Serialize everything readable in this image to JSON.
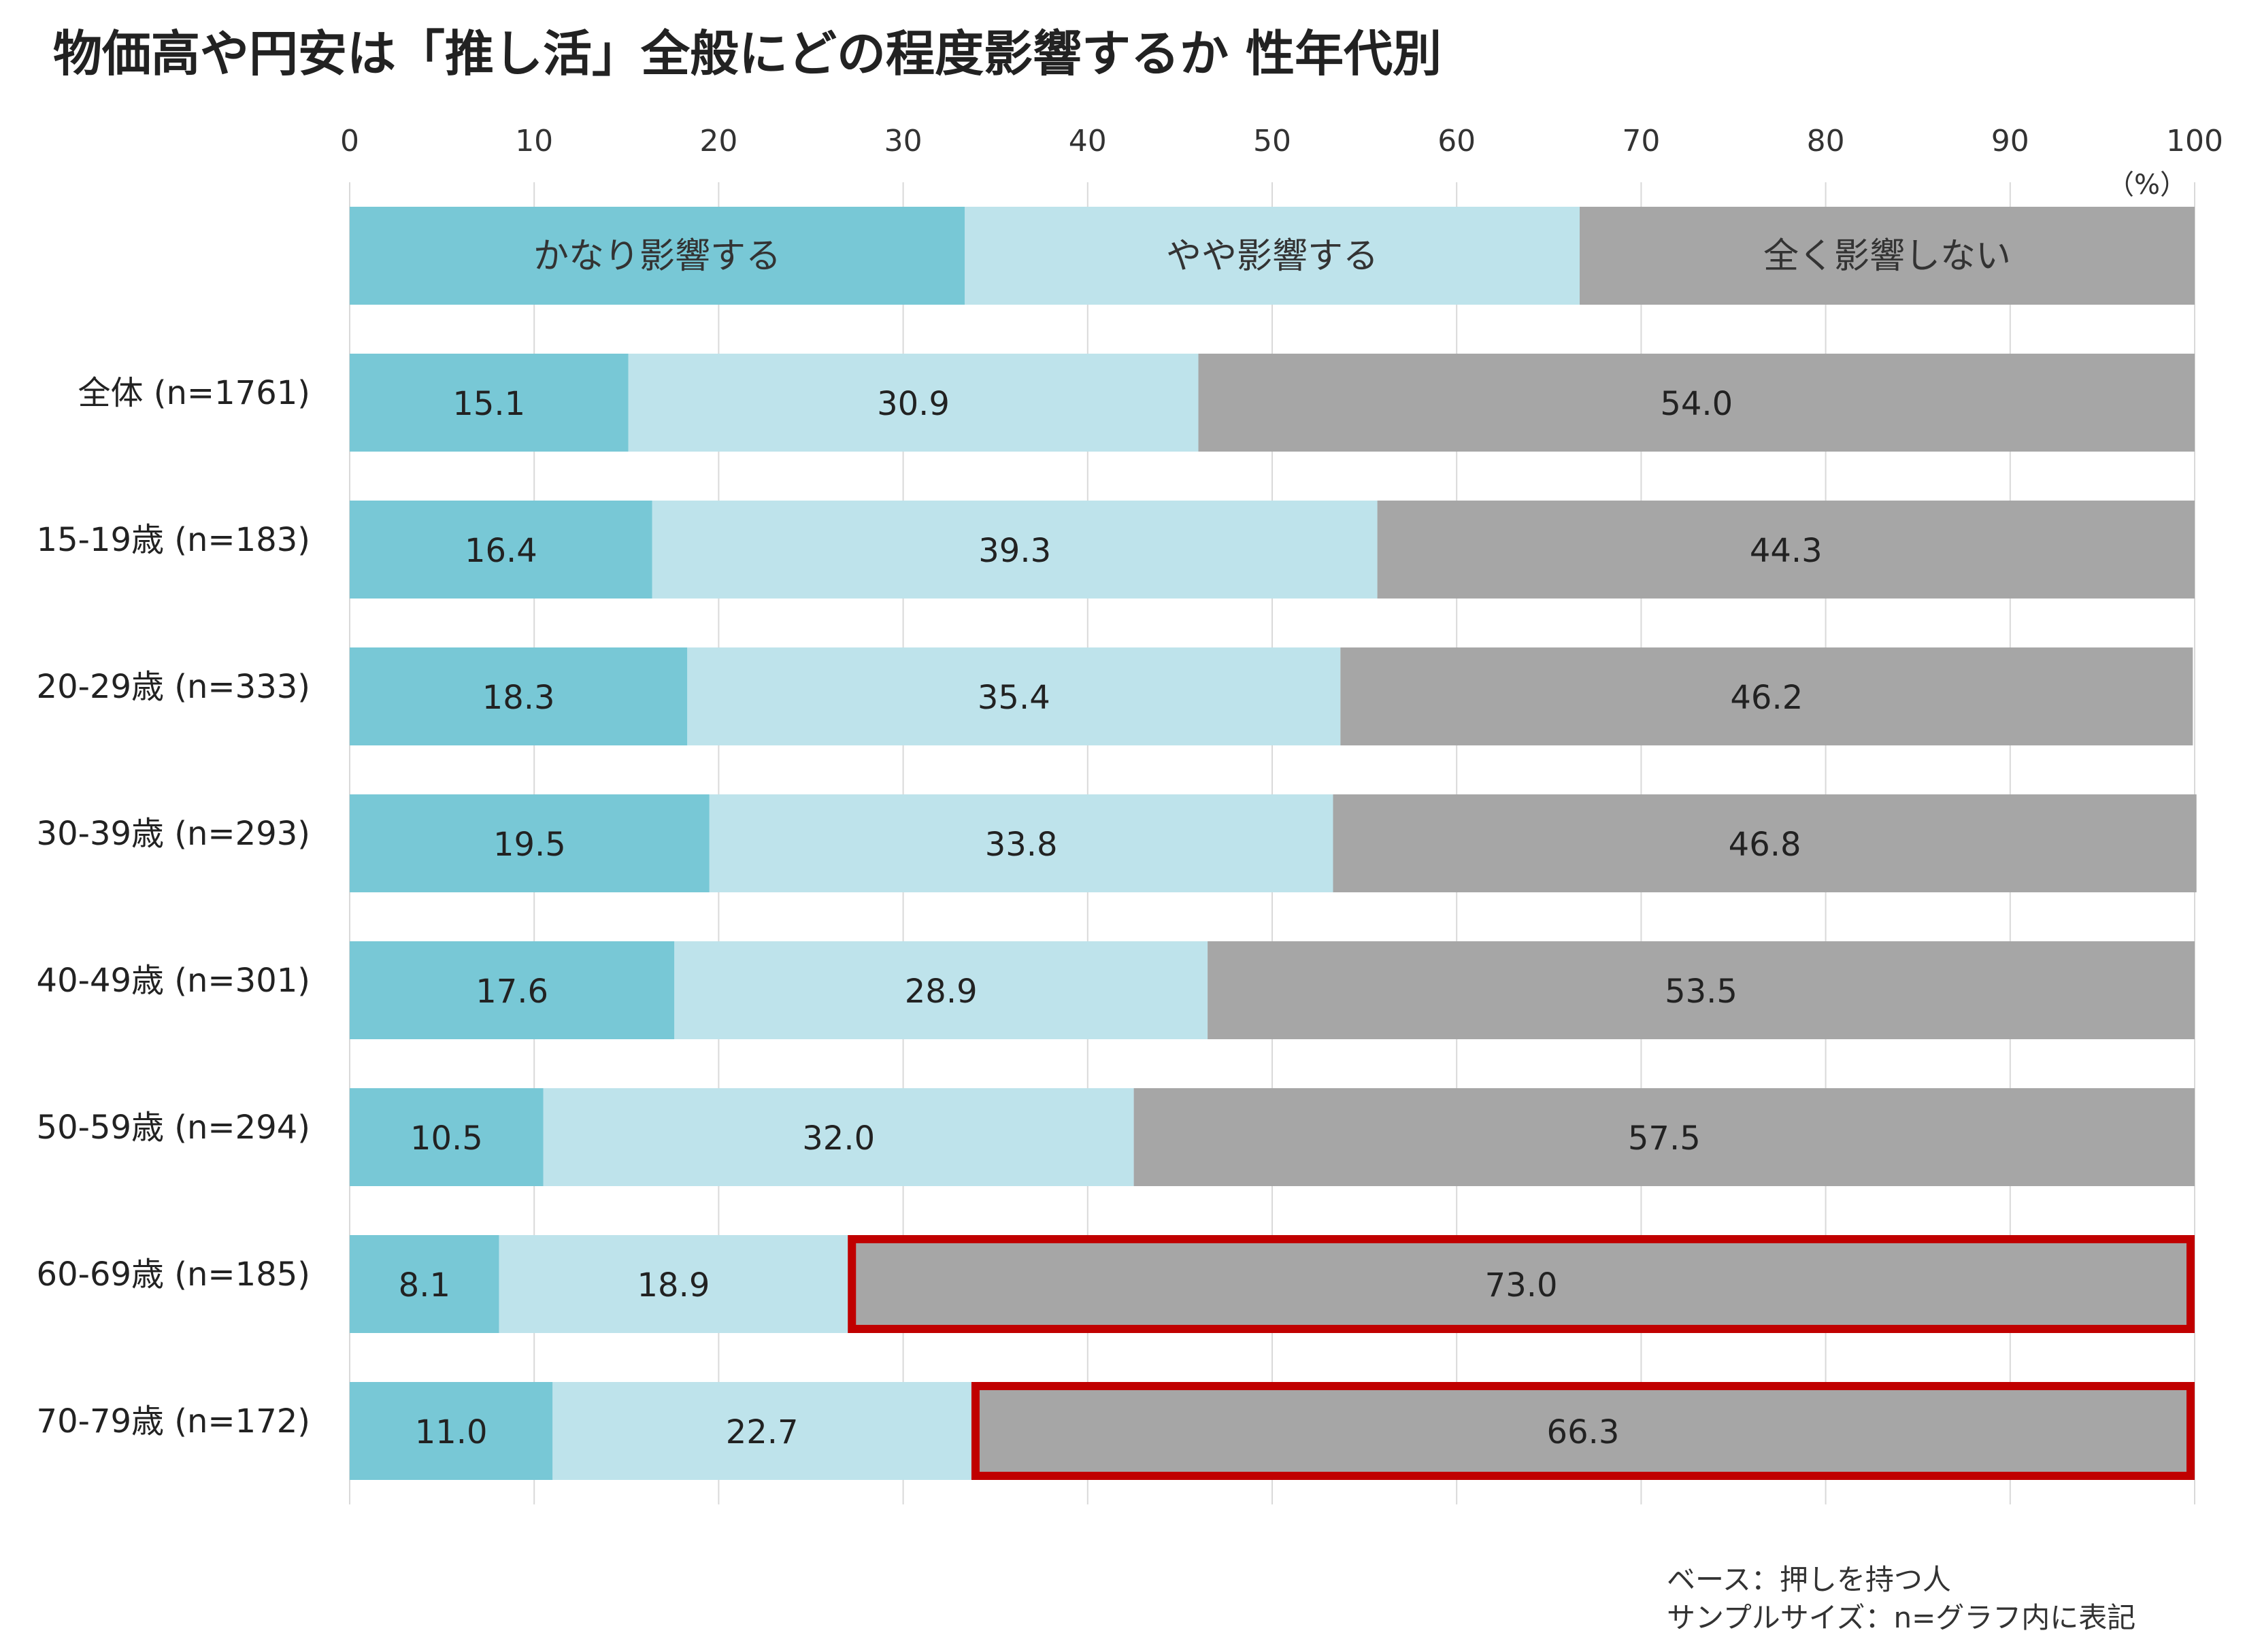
{
  "chart_data": {
    "type": "bar",
    "orientation": "horizontal",
    "stacked": true,
    "title": "物価高や円安は「推し活」全般にどの程度影響するか 性年代別",
    "unit": "（%）",
    "xlim": [
      0,
      100
    ],
    "x_ticks": [
      "0",
      "10",
      "20",
      "30",
      "40",
      "50",
      "60",
      "70",
      "80",
      "90",
      "100"
    ],
    "grid": true,
    "legend_position": "top",
    "categories": [
      "全体 (n=1761)",
      "15-19歳 (n=183)",
      "20-29歳 (n=333)",
      "30-39歳 (n=293)",
      "40-49歳 (n=301)",
      "50-59歳 (n=294)",
      "60-69歳 (n=185)",
      "70-79歳 (n=172)"
    ],
    "series": [
      {
        "name": "かなり影響する",
        "color": "#78c8d6",
        "values": [
          15.1,
          16.4,
          18.3,
          19.5,
          17.6,
          10.5,
          8.1,
          11.0
        ],
        "labels": [
          "15.1",
          "16.4",
          "18.3",
          "19.5",
          "17.6",
          "10.5",
          "8.1",
          "11.0"
        ]
      },
      {
        "name": "やや影響する",
        "color": "#bee3eb",
        "values": [
          30.9,
          39.3,
          35.4,
          33.8,
          28.9,
          32.0,
          18.9,
          22.7
        ],
        "labels": [
          "30.9",
          "39.3",
          "35.4",
          "33.8",
          "28.9",
          "32.0",
          "18.9",
          "22.7"
        ]
      },
      {
        "name": "全く影響しない",
        "color": "#a6a6a6",
        "values": [
          54.0,
          44.3,
          46.2,
          46.8,
          53.5,
          57.5,
          73.0,
          66.3
        ],
        "labels": [
          "54.0",
          "44.3",
          "46.2",
          "46.8",
          "53.5",
          "57.5",
          "73.0",
          "66.3"
        ]
      }
    ],
    "highlights": [
      {
        "category_index": 6,
        "series_index": 2,
        "color": "#c00000"
      },
      {
        "category_index": 7,
        "series_index": 2,
        "color": "#c00000"
      }
    ]
  },
  "footnote": {
    "line1": "ベース：押しを持つ人",
    "line2": "サンプルサイズ：n=グラフ内に表記"
  }
}
